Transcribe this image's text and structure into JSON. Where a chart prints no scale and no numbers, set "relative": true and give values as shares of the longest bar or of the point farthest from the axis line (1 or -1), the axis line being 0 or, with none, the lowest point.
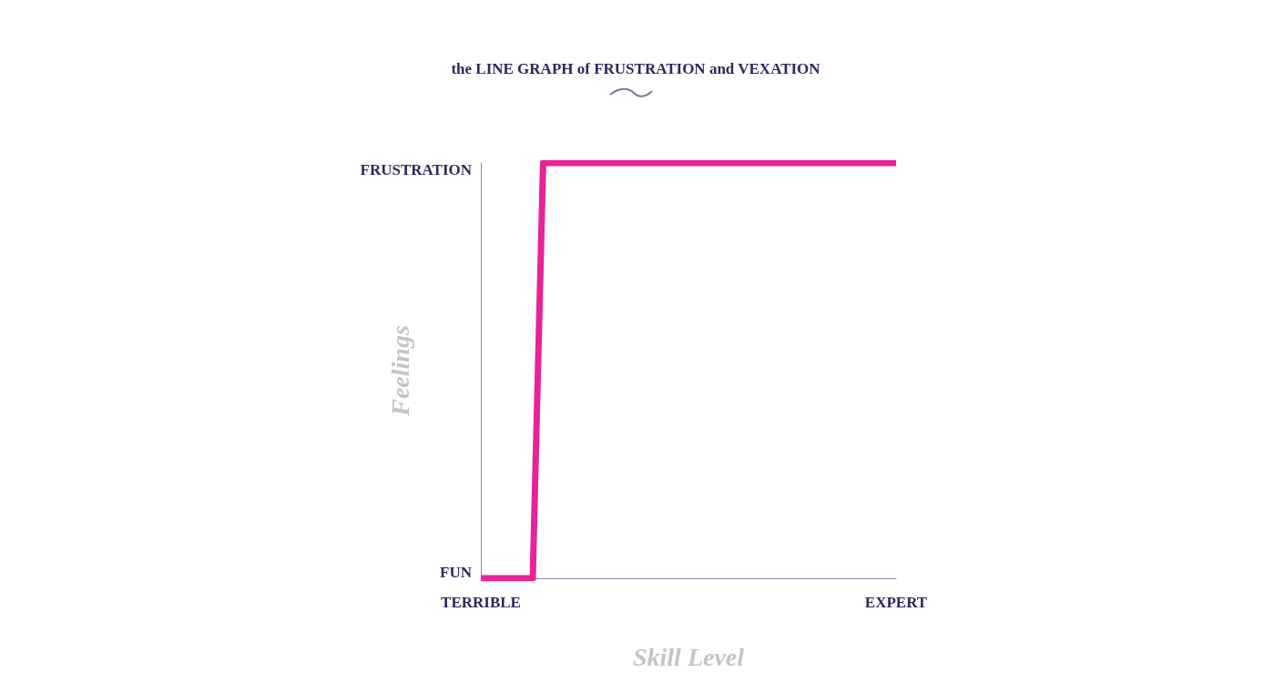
{
  "chart_data": {
    "type": "line",
    "title": "the LINE GRAPH of FRUSTRATION and VEXATION",
    "xlabel": "Skill Level",
    "ylabel": "Feelings",
    "annotations": [
      "FRUSTRATION",
      "FUN"
    ],
    "relative": true,
    "categories": [
      "TERRIBLE",
      null,
      null,
      null,
      null,
      null,
      null,
      null,
      null,
      null,
      null,
      null,
      null,
      null,
      null,
      null,
      null,
      null,
      null,
      null,
      null,
      null,
      null,
      null,
      null,
      null,
      null,
      null,
      null,
      null,
      null,
      null,
      null,
      null,
      null,
      null,
      null,
      null,
      null,
      null,
      "EXPERT"
    ],
    "series": [
      {
        "color": "#e8239a",
        "values": [
          0,
          0,
          0,
          0,
          0,
          0,
          1,
          1,
          1,
          1,
          1,
          1,
          1,
          1,
          1,
          1,
          1,
          1,
          1,
          1,
          1,
          1,
          1,
          1,
          1,
          1,
          1,
          1,
          1,
          1,
          1,
          1,
          1,
          1,
          1,
          1,
          1,
          1,
          1,
          1,
          1
        ]
      }
    ],
    "grid": false,
    "marker": "none",
    "line_style": "solid"
  }
}
